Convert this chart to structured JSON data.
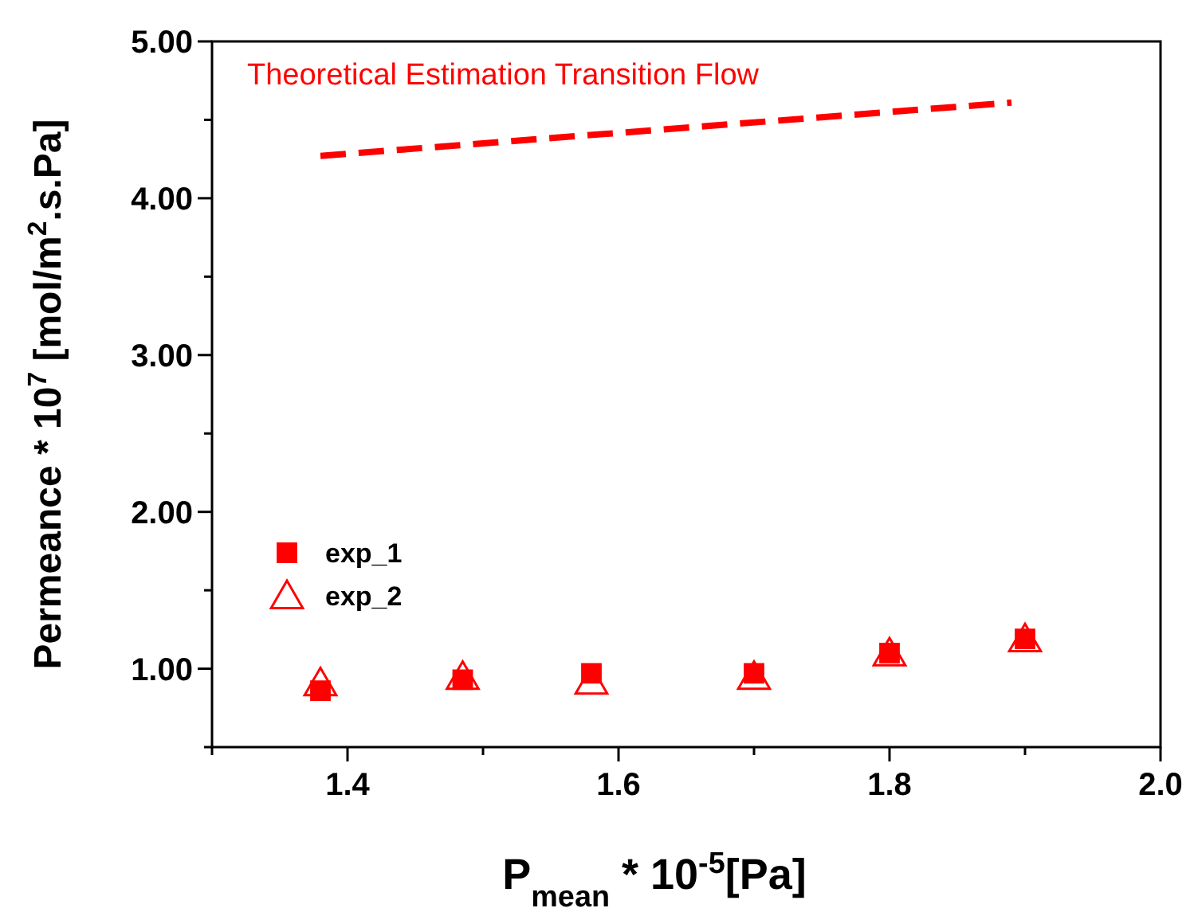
{
  "chart_data": {
    "type": "scatter",
    "xlabel": "P$_{mean}$ * 10$^{-5}$[Pa]",
    "ylabel": "Permeance * 10$^{7}$ [mol/m$^{2}$.s.Pa]",
    "xlim": [
      1.3,
      2.0
    ],
    "xticks": [
      {
        "value": 1.3,
        "label": null
      },
      1.4,
      {
        "value": 1.5,
        "label": null
      },
      1.6,
      {
        "value": 1.7,
        "label": null
      },
      1.8,
      {
        "value": 1.9,
        "label": null
      },
      {
        "value": 2.0,
        "label": "2.0"
      }
    ],
    "ylim": [
      0.5,
      5
    ],
    "yticks": [
      {
        "value": 0.5,
        "label": null
      },
      {
        "value": 1,
        "label": "1.00"
      },
      {
        "value": 1.5,
        "label": null
      },
      {
        "value": 2,
        "label": "2.00"
      },
      {
        "value": 2.5,
        "label": null
      },
      {
        "value": 3,
        "label": "3.00"
      },
      {
        "value": 3.5,
        "label": null
      },
      {
        "value": 4,
        "label": "4.00"
      },
      {
        "value": 4.5,
        "label": null
      },
      {
        "value": 5,
        "label": "5.00"
      }
    ],
    "legend": "left",
    "series": [
      {
        "name": "exp_1",
        "marker": "square",
        "color": "#ff0000",
        "x": [
          1.38,
          1.485,
          1.58,
          1.7,
          1.8,
          1.9
        ],
        "values": [
          0.86,
          0.93,
          0.97,
          0.97,
          1.1,
          1.19
        ]
      },
      {
        "name": "exp_2",
        "marker": "triangle",
        "color": "#ff0000",
        "x": [
          1.38,
          1.485,
          1.58,
          1.7,
          1.8,
          1.9
        ],
        "values": [
          0.91,
          0.95,
          0.92,
          0.95,
          1.1,
          1.19
        ]
      },
      {
        "name": "Theoretical Estimation Transition Flow",
        "type": "line",
        "marker": "none",
        "line_style": "dashed",
        "color": "#ff0000",
        "x": [
          1.38,
          1.89
        ],
        "values": [
          4.27,
          4.61
        ]
      }
    ]
  }
}
